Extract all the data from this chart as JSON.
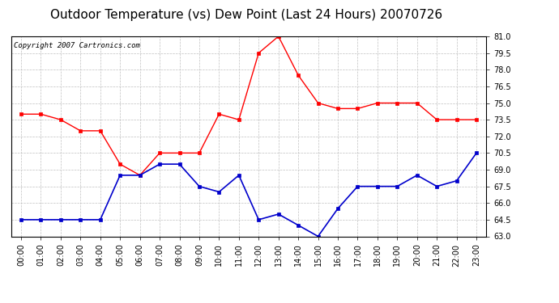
{
  "title": "Outdoor Temperature (vs) Dew Point (Last 24 Hours) 20070726",
  "copyright_text": "Copyright 2007 Cartronics.com",
  "hours": [
    "00:00",
    "01:00",
    "02:00",
    "03:00",
    "04:00",
    "05:00",
    "06:00",
    "07:00",
    "08:00",
    "09:00",
    "10:00",
    "11:00",
    "12:00",
    "13:00",
    "14:00",
    "15:00",
    "16:00",
    "17:00",
    "18:00",
    "19:00",
    "20:00",
    "21:00",
    "22:00",
    "23:00"
  ],
  "temp": [
    74.0,
    74.0,
    73.5,
    72.5,
    72.5,
    69.5,
    68.5,
    70.5,
    70.5,
    70.5,
    74.0,
    73.5,
    79.5,
    81.0,
    77.5,
    75.0,
    74.5,
    74.5,
    75.0,
    75.0,
    75.0,
    73.5,
    73.5,
    73.5
  ],
  "dew": [
    64.5,
    64.5,
    64.5,
    64.5,
    64.5,
    68.5,
    68.5,
    69.5,
    69.5,
    67.5,
    67.0,
    68.5,
    64.5,
    65.0,
    64.0,
    63.0,
    65.5,
    67.5,
    67.5,
    67.5,
    68.5,
    67.5,
    68.0,
    70.5
  ],
  "temp_color": "#ff0000",
  "dew_color": "#0000cc",
  "bg_color": "#ffffff",
  "plot_bg_color": "#ffffff",
  "grid_color": "#c0c0c0",
  "ylim_min": 63.0,
  "ylim_max": 81.0,
  "yticks": [
    63.0,
    64.5,
    66.0,
    67.5,
    69.0,
    70.5,
    72.0,
    73.5,
    75.0,
    76.5,
    78.0,
    79.5,
    81.0
  ],
  "title_fontsize": 11,
  "copyright_fontsize": 6.5,
  "tick_fontsize": 7,
  "marker_size": 3
}
